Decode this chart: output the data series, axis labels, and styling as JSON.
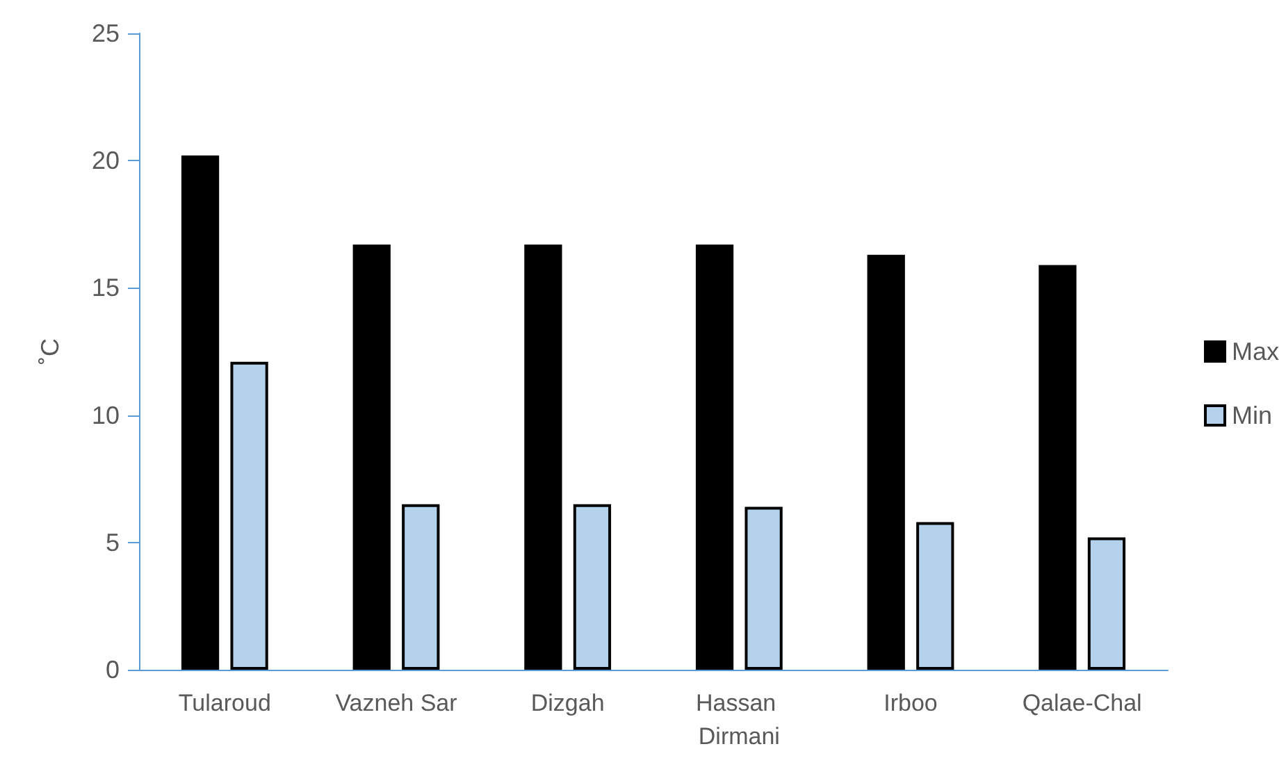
{
  "chart_data": {
    "type": "bar",
    "ylabel": "˚C",
    "categories": [
      "Tularoud",
      "Vazneh Sar",
      "Dizgah",
      "Hassan Dirmani",
      "Irboo",
      "Qalae-Chal"
    ],
    "series": [
      {
        "name": "Max",
        "color": "#000000",
        "values": [
          20.2,
          16.7,
          16.7,
          16.7,
          16.3,
          15.9
        ]
      },
      {
        "name": "Min",
        "color": "#b4d2ec",
        "values": [
          12.1,
          6.5,
          6.5,
          6.4,
          5.8,
          5.2
        ]
      }
    ],
    "ylim": [
      0,
      25
    ],
    "yticks": [
      0,
      5,
      10,
      15,
      20,
      25
    ],
    "grid": false,
    "legend": "right"
  }
}
